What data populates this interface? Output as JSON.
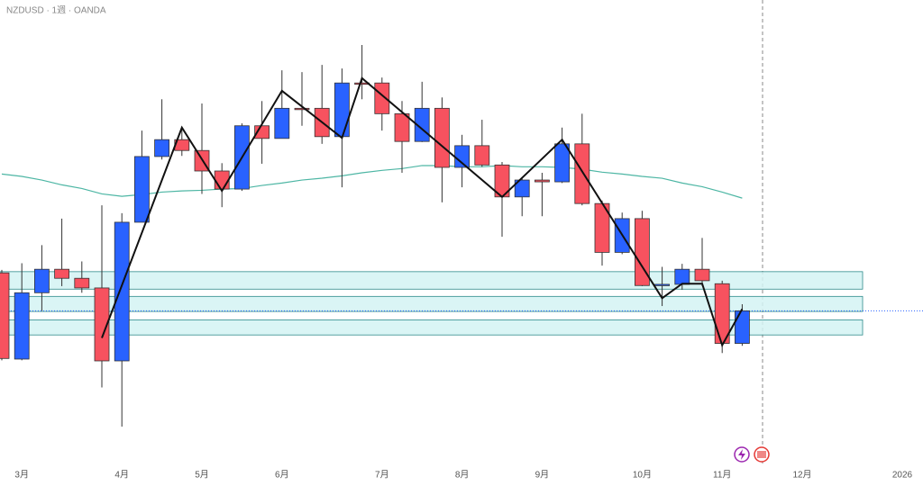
{
  "chart_data": {
    "type": "candlestick",
    "title": "NZDUSD · 1週 · OANDA",
    "up_color": "#2962ff",
    "down_color": "#f7525f",
    "open": [
      0.5742,
      0.5599,
      0.5709,
      0.5748,
      0.5733,
      0.5717,
      0.5596,
      0.5826,
      0.5935,
      0.5963,
      0.5945,
      0.5911,
      0.5881,
      0.5986,
      0.5965,
      0.6015,
      0.6015,
      0.5968,
      0.6057,
      0.6057,
      0.6006,
      0.596,
      0.6015,
      0.5917,
      0.5953,
      0.5921,
      0.5868,
      0.5896,
      0.5893,
      0.5956,
      0.5857,
      0.5776,
      0.5832,
      0.5721,
      0.5723,
      0.5748,
      0.5724,
      0.5625
    ],
    "high": [
      0.5747,
      0.5758,
      0.5788,
      0.5832,
      0.5761,
      0.5854,
      0.5841,
      0.5978,
      0.603,
      0.5983,
      0.6023,
      0.5924,
      0.599,
      0.6027,
      0.6078,
      0.6075,
      0.6087,
      0.6081,
      0.612,
      0.6066,
      0.6027,
      0.6059,
      0.6033,
      0.5971,
      0.5996,
      0.5926,
      0.5899,
      0.5908,
      0.5983,
      0.6006,
      0.5862,
      0.5842,
      0.5845,
      0.5752,
      0.5757,
      0.58,
      0.5729,
      0.569
    ],
    "low": [
      0.5597,
      0.5597,
      0.5679,
      0.572,
      0.5709,
      0.5552,
      0.5487,
      0.5826,
      0.593,
      0.5936,
      0.5873,
      0.5851,
      0.5878,
      0.5923,
      0.5965,
      0.5986,
      0.5956,
      0.5884,
      0.603,
      0.5978,
      0.5908,
      0.5959,
      0.5859,
      0.5884,
      0.5918,
      0.5802,
      0.5836,
      0.5836,
      0.5891,
      0.5854,
      0.5754,
      0.5773,
      0.572,
      0.5687,
      0.5714,
      0.572,
      0.5609,
      0.5621
    ],
    "close": [
      0.56,
      0.5709,
      0.5748,
      0.5733,
      0.5717,
      0.5596,
      0.5826,
      0.5935,
      0.5963,
      0.5945,
      0.5911,
      0.5881,
      0.5986,
      0.5965,
      0.6015,
      0.6014,
      0.5968,
      0.6057,
      0.6056,
      0.6006,
      0.596,
      0.6015,
      0.5917,
      0.5953,
      0.5921,
      0.5868,
      0.5896,
      0.5893,
      0.5956,
      0.5857,
      0.5776,
      0.5832,
      0.5721,
      0.5723,
      0.5748,
      0.5729,
      0.5625,
      0.5679
    ],
    "ma": {
      "color": "#4db6a4",
      "values": [
        0.5906,
        0.5902,
        0.5896,
        0.5888,
        0.5882,
        0.5873,
        0.5869,
        0.5872,
        0.5876,
        0.5878,
        0.5879,
        0.5881,
        0.5882,
        0.5887,
        0.5891,
        0.5896,
        0.5899,
        0.5903,
        0.5908,
        0.5912,
        0.5915,
        0.592,
        0.592,
        0.5918,
        0.5918,
        0.592,
        0.5918,
        0.5918,
        0.5917,
        0.5914,
        0.5909,
        0.5906,
        0.5902,
        0.5899,
        0.5891,
        0.5885,
        0.5876,
        0.5866
      ]
    },
    "zigzag": {
      "color": "#111111",
      "x": [
        5,
        9,
        11,
        14,
        17,
        18,
        25,
        28,
        33,
        34,
        35,
        36,
        37
      ],
      "values": [
        0.5634,
        0.5983,
        0.5878,
        0.6044,
        0.5966,
        0.6065,
        0.5868,
        0.5963,
        0.57,
        0.5724,
        0.5724,
        0.5622,
        0.5682
      ]
    },
    "zones": [
      [
        0.5744,
        0.5715
      ],
      [
        0.5703,
        0.5678
      ],
      [
        0.5664,
        0.5639
      ]
    ],
    "xticks": [
      {
        "value": 1,
        "label": "3月"
      },
      {
        "value": 6,
        "label": "4月"
      },
      {
        "value": 10,
        "label": "5月"
      },
      {
        "value": 14,
        "label": "6月"
      },
      {
        "value": 19,
        "label": "7月"
      },
      {
        "value": 23,
        "label": "8月"
      },
      {
        "value": 27,
        "label": "9月"
      },
      {
        "value": 32,
        "label": "10月"
      },
      {
        "value": 36,
        "label": "11月"
      },
      {
        "value": 40,
        "label": "12月"
      },
      {
        "value": 45,
        "label": "2026"
      }
    ]
  }
}
